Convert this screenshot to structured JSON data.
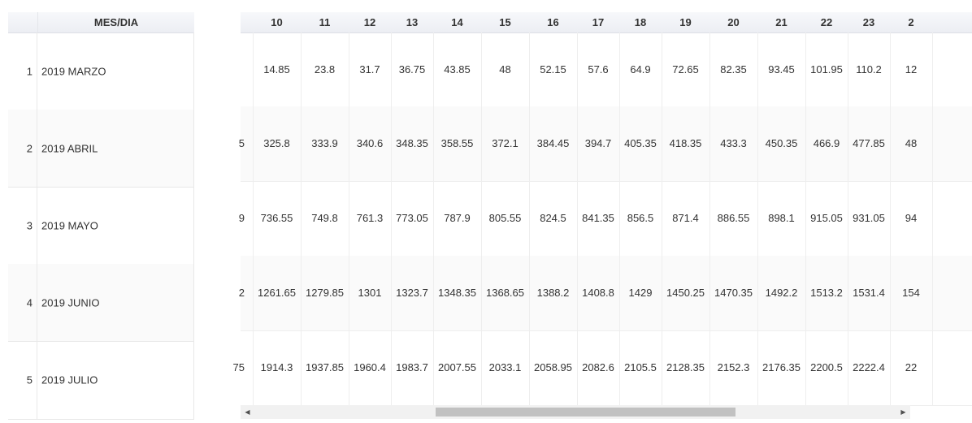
{
  "left_header": "MES/DIA",
  "rows": [
    {
      "num": "1",
      "name": "2019 MARZO"
    },
    {
      "num": "2",
      "name": "2019 ABRIL"
    },
    {
      "num": "3",
      "name": "2019 MAYO"
    },
    {
      "num": "4",
      "name": "2019 JUNIO"
    },
    {
      "num": "5",
      "name": "2019 JULIO"
    }
  ],
  "day_headers": [
    "10",
    "11",
    "12",
    "13",
    "14",
    "15",
    "16",
    "17",
    "18",
    "19",
    "20",
    "21",
    "22",
    "23",
    "2"
  ],
  "partial_left": [
    "",
    "5",
    "9",
    "2",
    "75"
  ],
  "cells": [
    [
      "14.85",
      "23.8",
      "31.7",
      "36.75",
      "43.85",
      "48",
      "52.15",
      "57.6",
      "64.9",
      "72.65",
      "82.35",
      "93.45",
      "101.95",
      "110.2",
      "12"
    ],
    [
      "325.8",
      "333.9",
      "340.6",
      "348.35",
      "358.55",
      "372.1",
      "384.45",
      "394.7",
      "405.35",
      "418.35",
      "433.3",
      "450.35",
      "466.9",
      "477.85",
      "48"
    ],
    [
      "736.55",
      "749.8",
      "761.3",
      "773.05",
      "787.9",
      "805.55",
      "824.5",
      "841.35",
      "856.5",
      "871.4",
      "886.55",
      "898.1",
      "915.05",
      "931.05",
      "94"
    ],
    [
      "1261.65",
      "1279.85",
      "1301",
      "1323.7",
      "1348.35",
      "1368.65",
      "1388.2",
      "1408.8",
      "1429",
      "1450.25",
      "1470.35",
      "1492.2",
      "1513.2",
      "1531.4",
      "154"
    ],
    [
      "1914.3",
      "1937.85",
      "1960.4",
      "1983.7",
      "2007.55",
      "2033.1",
      "2058.95",
      "2082.6",
      "2105.5",
      "2128.35",
      "2152.3",
      "2176.35",
      "2200.5",
      "2222.4",
      "22"
    ]
  ],
  "scrollbar": {
    "left_arrow": "◀",
    "right_arrow": "▶"
  }
}
